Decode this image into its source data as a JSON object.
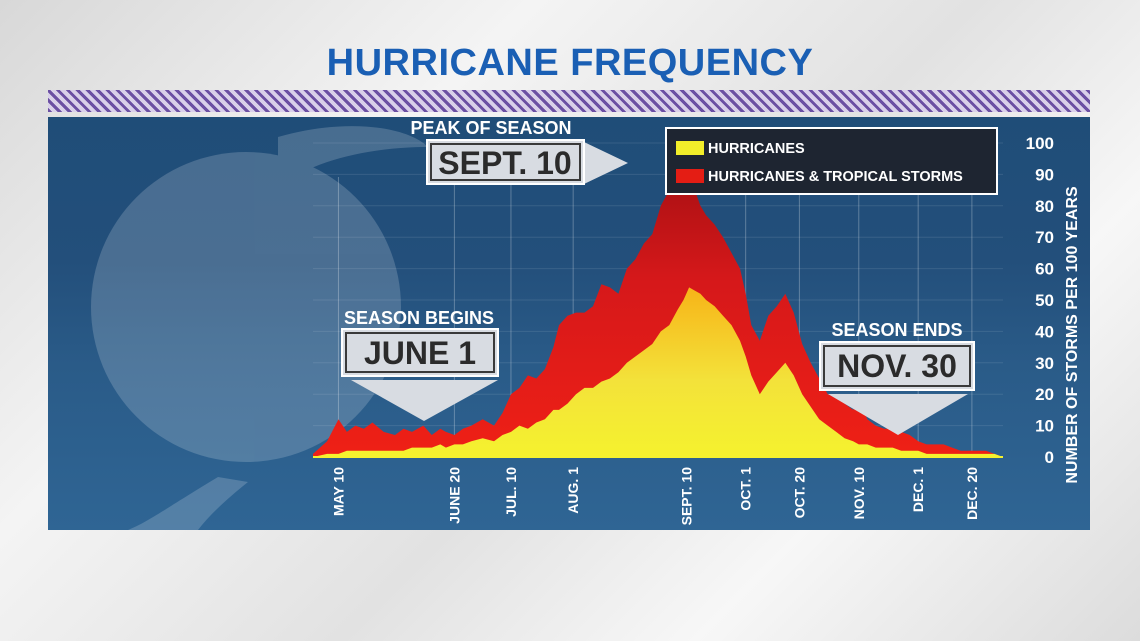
{
  "title": "HURRICANE FREQUENCY",
  "annotations": {
    "peak_caption": "PEAK OF SEASON",
    "peak_date": "SEPT. 10",
    "begin_caption": "SEASON BEGINS",
    "begin_date": "JUNE 1",
    "end_caption": "SEASON ENDS",
    "end_date": "NOV. 30"
  },
  "colors": {
    "title": "#1a5fb4",
    "hurricanes": "#f2ee2a",
    "hurricanes_and_tropical_storms": "#e41d14",
    "panel": "#234f7b"
  },
  "chart_data": {
    "type": "area",
    "title": "HURRICANE FREQUENCY",
    "xlabel": "",
    "ylabel": "NUMBER OF STORMS PER 100 YEARS",
    "ylim": [
      0,
      100
    ],
    "yticks": [
      0,
      10,
      20,
      30,
      40,
      50,
      60,
      70,
      80,
      90,
      100
    ],
    "x_ticks": [
      "MAY 10",
      "JUNE 20",
      "JUL. 10",
      "AUG. 1",
      "SEPT. 10",
      "OCT. 1",
      "OCT. 20",
      "NOV. 10",
      "DEC. 1",
      "DEC. 20"
    ],
    "x_tick_days": [
      130,
      171,
      191,
      213,
      253,
      274,
      293,
      314,
      335,
      354
    ],
    "x": [
      121,
      126,
      130,
      133,
      136,
      139,
      142,
      146,
      150,
      153,
      156,
      160,
      163,
      166,
      168,
      171,
      174,
      177,
      181,
      185,
      188,
      191,
      194,
      197,
      200,
      203,
      206,
      208,
      211,
      214,
      217,
      220,
      223,
      226,
      229,
      232,
      235,
      238,
      241,
      244,
      247,
      250,
      252,
      253,
      254,
      256,
      258,
      260,
      263,
      266,
      269,
      272,
      274,
      276,
      279,
      282,
      285,
      288,
      291,
      294,
      297,
      300,
      303,
      306,
      309,
      312,
      314,
      317,
      320,
      323,
      326,
      329,
      332,
      335,
      338,
      341,
      344,
      347,
      350,
      353,
      356,
      359,
      362,
      365
    ],
    "series": [
      {
        "name": "HURRICANES",
        "values": [
          0,
          1,
          1,
          2,
          2,
          2,
          2,
          2,
          2,
          2,
          3,
          3,
          3,
          4,
          3,
          4,
          4,
          5,
          6,
          5,
          7,
          8,
          10,
          9,
          11,
          12,
          15,
          15,
          17,
          20,
          22,
          22,
          24,
          25,
          27,
          30,
          32,
          34,
          36,
          40,
          42,
          47,
          50,
          52,
          54,
          53,
          52,
          50,
          48,
          45,
          42,
          37,
          32,
          26,
          20,
          24,
          27,
          30,
          26,
          20,
          16,
          12,
          10,
          8,
          6,
          5,
          4,
          4,
          3,
          3,
          3,
          2,
          2,
          2,
          1,
          1,
          1,
          1,
          1,
          1,
          1,
          1,
          1,
          0
        ]
      },
      {
        "name": "HURRICANES & TROPICAL STORMS",
        "values": [
          1,
          5,
          12,
          8,
          10,
          9,
          11,
          8,
          7,
          9,
          8,
          10,
          7,
          9,
          8,
          7,
          9,
          10,
          12,
          10,
          14,
          20,
          22,
          26,
          25,
          28,
          35,
          42,
          45,
          46,
          46,
          48,
          55,
          54,
          52,
          60,
          63,
          68,
          71,
          80,
          85,
          90,
          93,
          95,
          92,
          85,
          80,
          77,
          74,
          70,
          65,
          60,
          52,
          42,
          37,
          45,
          48,
          52,
          46,
          36,
          30,
          25,
          20,
          19,
          17,
          15,
          18,
          12,
          10,
          9,
          9,
          8,
          7,
          5,
          4,
          4,
          4,
          3,
          2,
          2,
          2,
          2,
          1,
          0
        ]
      }
    ],
    "legend_position": "top-right",
    "grid": true
  }
}
